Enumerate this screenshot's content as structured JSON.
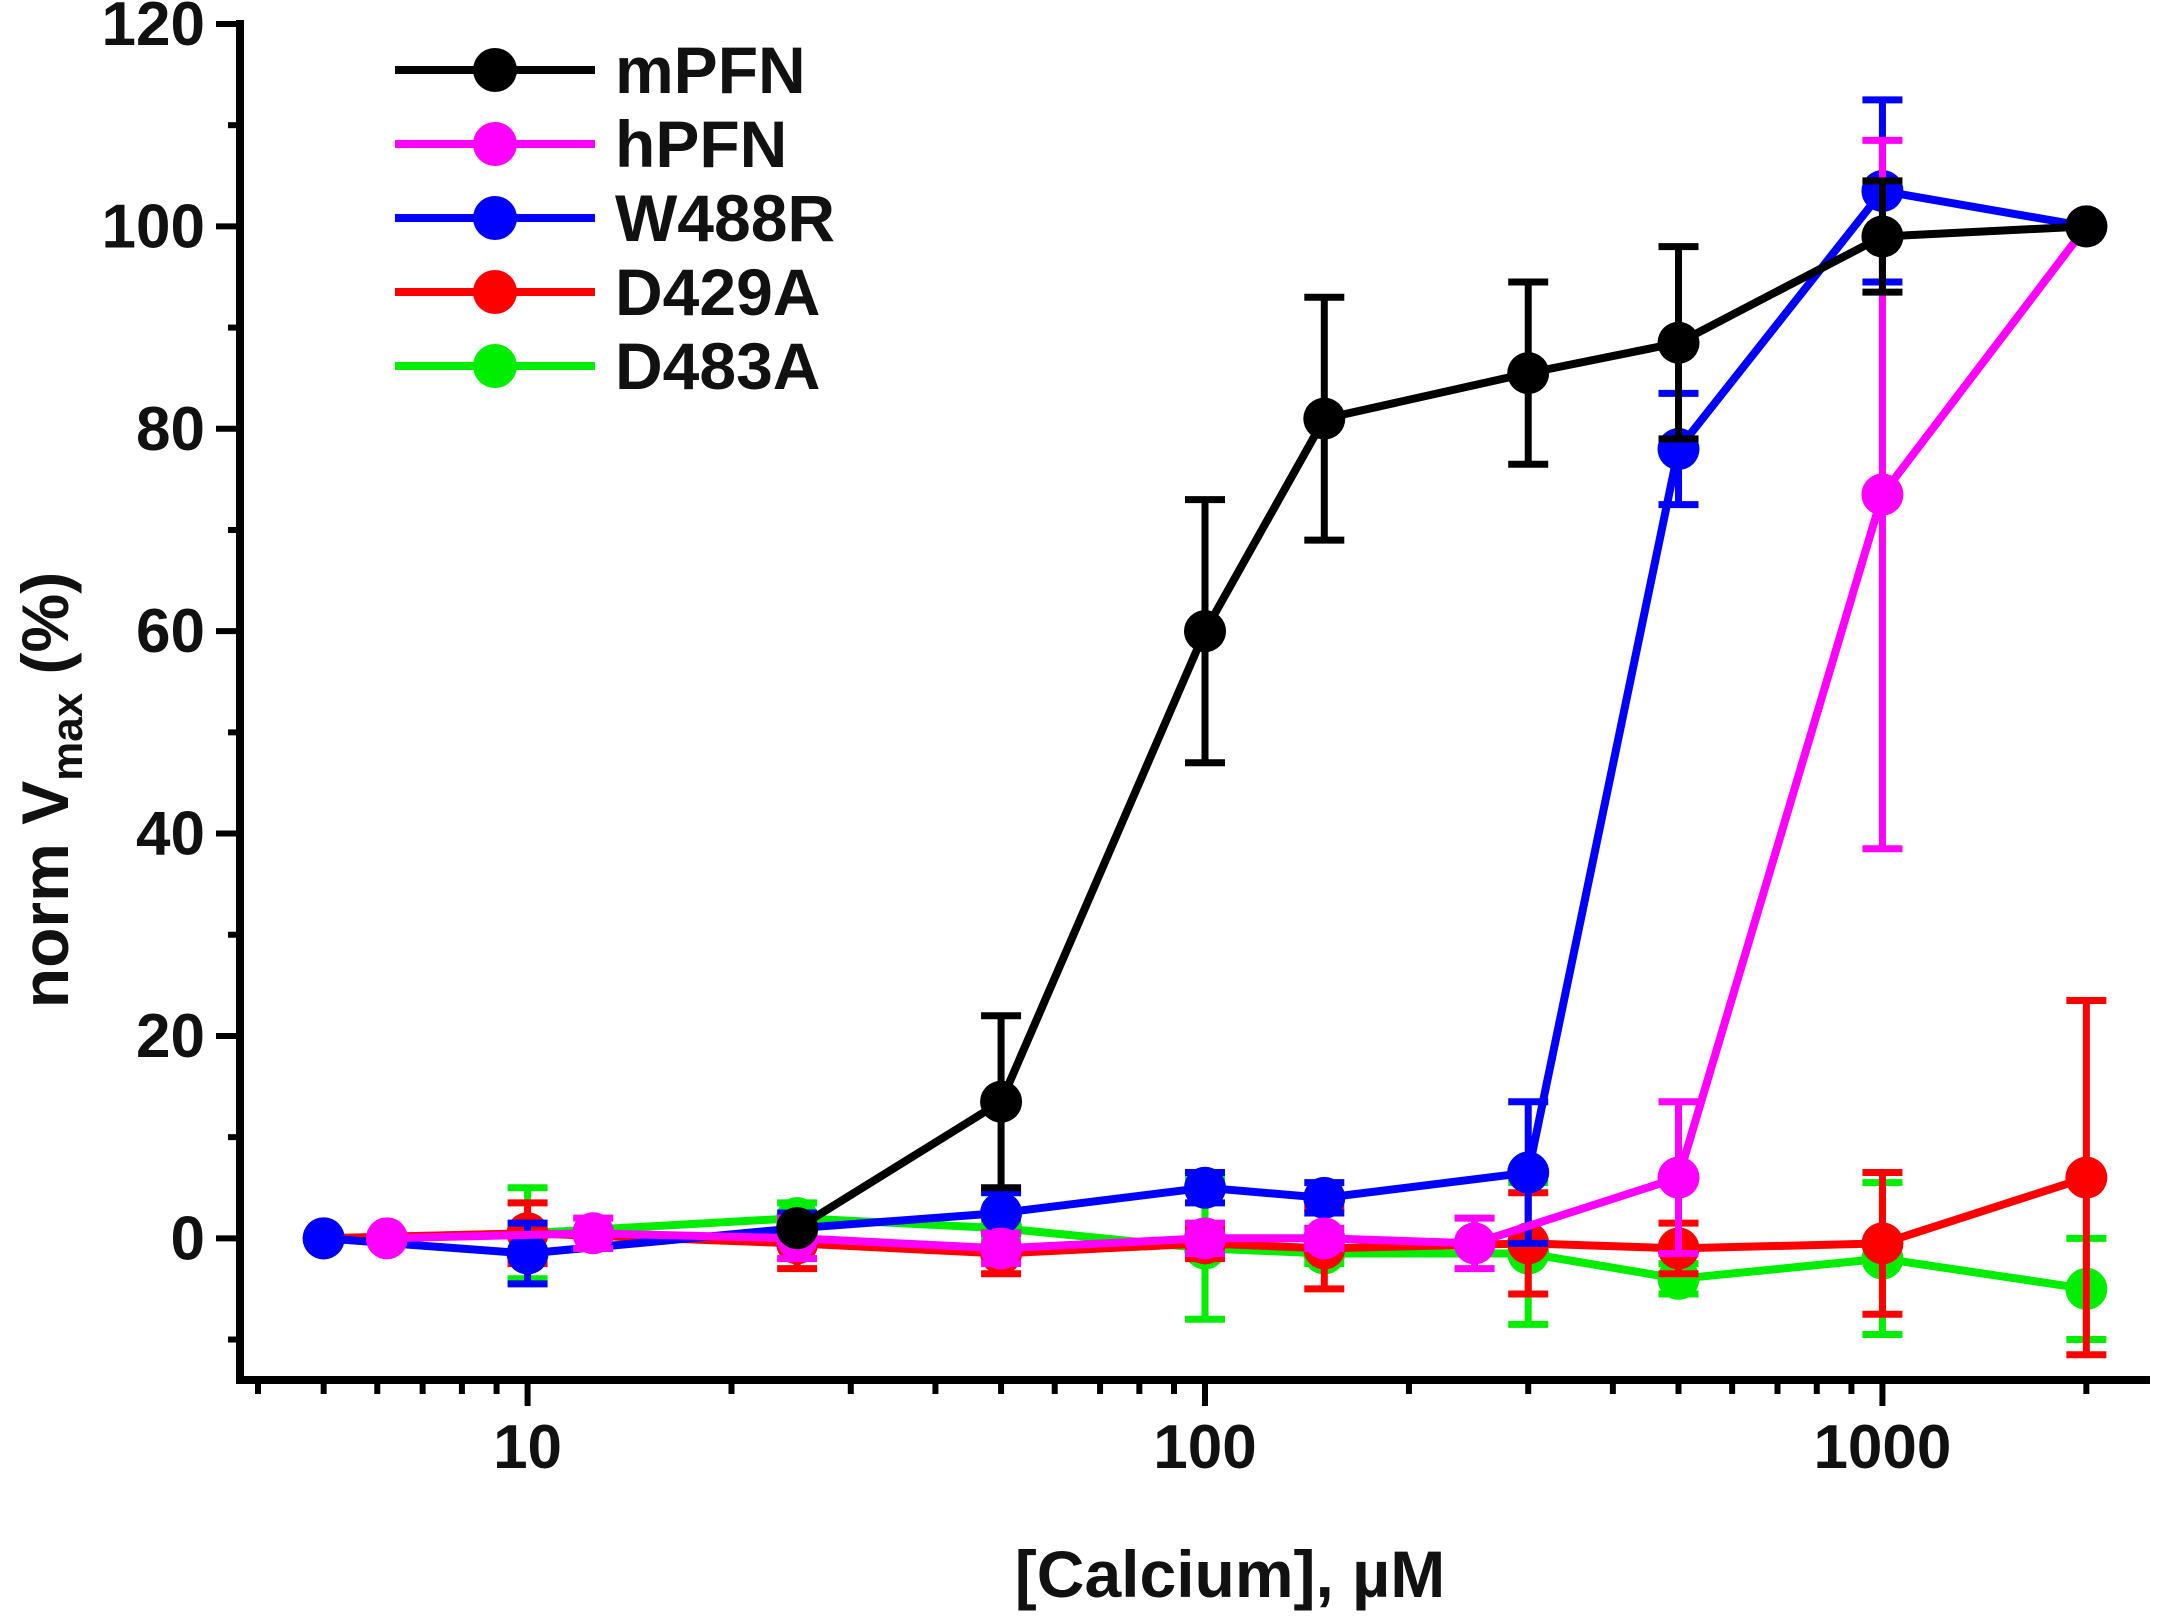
{
  "chart_data": {
    "type": "line",
    "xscale": "log",
    "xlim": [
      4,
      2400
    ],
    "ylim": [
      -14,
      120
    ],
    "xticks_major": [
      10,
      100,
      1000
    ],
    "xtick_labels": [
      "10",
      "100",
      "1000"
    ],
    "yticks": [
      0,
      20,
      40,
      60,
      80,
      100,
      120
    ],
    "ytick_labels": [
      "0",
      "20",
      "40",
      "60",
      "80",
      "100",
      "120"
    ],
    "xlabel": "[Calcium], µM",
    "ylabel_main": "norm V",
    "ylabel_sub": "max",
    "ylabel_unit": " (%)",
    "legend_position": "top-left",
    "series": [
      {
        "name": "D483A",
        "color": "#00ee00",
        "x": [
          5,
          10,
          25,
          50,
          100,
          150,
          300,
          500,
          1000,
          2000
        ],
        "y": [
          0,
          0.5,
          2,
          1,
          -1,
          -1.5,
          -1.5,
          -4,
          -2,
          -5
        ],
        "err": [
          0,
          4.5,
          1.5,
          1,
          7,
          1,
          7,
          1.5,
          7.5,
          5
        ]
      },
      {
        "name": "D429A",
        "color": "#ff0000",
        "x": [
          5,
          10,
          25,
          50,
          100,
          150,
          300,
          500,
          1000,
          2000
        ],
        "y": [
          0,
          0.5,
          -0.5,
          -1.5,
          -0.5,
          -1,
          -0.5,
          -1,
          -0.5,
          6
        ],
        "err": [
          0,
          3,
          2.5,
          2,
          1.5,
          4,
          5,
          2.5,
          7,
          17.5
        ]
      },
      {
        "name": "W488R",
        "color": "#0000ff",
        "x": [
          5,
          10,
          25,
          50,
          100,
          150,
          300,
          500,
          1000,
          2000
        ],
        "y": [
          0,
          -1.5,
          1,
          2.5,
          5,
          4,
          6.5,
          78,
          103.5,
          100
        ],
        "err": [
          0,
          3,
          1.5,
          2,
          1.5,
          1.5,
          7,
          5.5,
          9,
          0
        ]
      },
      {
        "name": "hPFN",
        "color": "#ff00ff",
        "x": [
          6.2,
          12.5,
          25,
          50,
          100,
          150,
          250,
          500,
          1000,
          2000
        ],
        "y": [
          0,
          0.5,
          0,
          -1,
          0,
          0,
          -0.5,
          6,
          73.5,
          100
        ],
        "err": [
          0,
          1.5,
          2,
          1.5,
          1.5,
          1,
          2.5,
          7.5,
          35,
          0
        ]
      },
      {
        "name": "mPFN",
        "color": "#000000",
        "x": [
          25,
          50,
          100,
          150,
          300,
          500,
          1000,
          2000
        ],
        "y": [
          1,
          13.5,
          60,
          81,
          85.5,
          88.5,
          99,
          100
        ],
        "err": [
          0,
          8.5,
          13,
          12,
          9,
          9.5,
          5.5,
          0
        ]
      }
    ],
    "legend": [
      {
        "name": "mPFN",
        "color": "#000000"
      },
      {
        "name": "hPFN",
        "color": "#ff00ff"
      },
      {
        "name": "W488R",
        "color": "#0000ff"
      },
      {
        "name": "D429A",
        "color": "#ff0000"
      },
      {
        "name": "D483A",
        "color": "#00ee00"
      }
    ]
  }
}
